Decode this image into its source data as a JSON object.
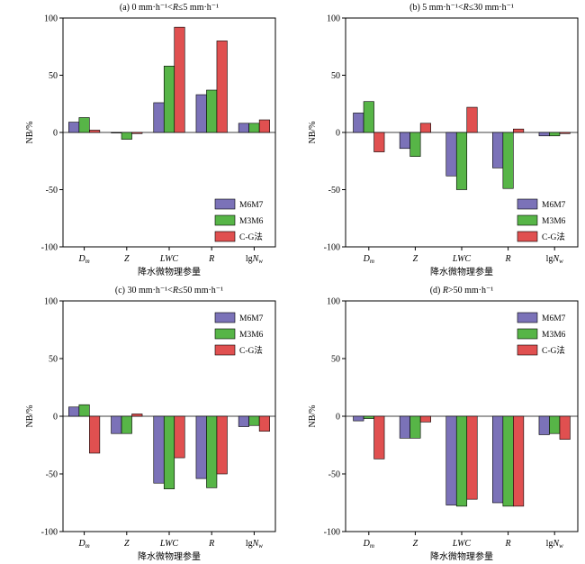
{
  "chart_data": [
    {
      "type": "bar",
      "title": "(a) 0 mm·h⁻¹<R≤5 mm·h⁻¹",
      "ylabel": "NB/%",
      "xlabel": "降水微物理参量",
      "ylim": [
        -100,
        100
      ],
      "yticks": [
        -100,
        -50,
        0,
        50,
        100
      ],
      "categories": [
        "Dm",
        "Z",
        "LWC",
        "R",
        "lgNw"
      ],
      "legend_position": "bottom-right",
      "series": [
        {
          "name": "M6M7",
          "color": "#7b72b8",
          "values": [
            9,
            0,
            26,
            33,
            8
          ]
        },
        {
          "name": "M3M6",
          "color": "#57b547",
          "values": [
            13,
            -6,
            58,
            37,
            8
          ]
        },
        {
          "name": "C-G法",
          "color": "#e05050",
          "values": [
            2,
            -1,
            92,
            80,
            11
          ]
        }
      ]
    },
    {
      "type": "bar",
      "title": "(b) 5 mm·h⁻¹<R≤30 mm·h⁻¹",
      "ylabel": "NB/%",
      "xlabel": "降水微物理参量",
      "ylim": [
        -100,
        100
      ],
      "yticks": [
        -100,
        -50,
        0,
        50,
        100
      ],
      "categories": [
        "Dm",
        "Z",
        "LWC",
        "R",
        "lgNw"
      ],
      "legend_position": "bottom-right",
      "series": [
        {
          "name": "M6M7",
          "color": "#7b72b8",
          "values": [
            17,
            -14,
            -38,
            -31,
            -3
          ]
        },
        {
          "name": "M3M6",
          "color": "#57b547",
          "values": [
            27,
            -21,
            -50,
            -49,
            -3
          ]
        },
        {
          "name": "C-G法",
          "color": "#e05050",
          "values": [
            -17,
            8,
            22,
            3,
            -1
          ]
        }
      ]
    },
    {
      "type": "bar",
      "title": "(c) 30 mm·h⁻¹<R≤50 mm·h⁻¹",
      "ylabel": "NB/%",
      "xlabel": "降水微物理参量",
      "ylim": [
        -100,
        100
      ],
      "yticks": [
        -100,
        -50,
        0,
        50,
        100
      ],
      "categories": [
        "Dm",
        "Z",
        "LWC",
        "R",
        "lgNw"
      ],
      "legend_position": "top-right",
      "series": [
        {
          "name": "M6M7",
          "color": "#7b72b8",
          "values": [
            8,
            -15,
            -58,
            -54,
            -9
          ]
        },
        {
          "name": "M3M6",
          "color": "#57b547",
          "values": [
            10,
            -15,
            -63,
            -62,
            -8
          ]
        },
        {
          "name": "C-G法",
          "color": "#e05050",
          "values": [
            -32,
            2,
            -36,
            -50,
            -13
          ]
        }
      ]
    },
    {
      "type": "bar",
      "title": "(d) R>50 mm·h⁻¹",
      "ylabel": "NB/%",
      "xlabel": "降水微物理参量",
      "ylim": [
        -100,
        100
      ],
      "yticks": [
        -100,
        -50,
        0,
        50,
        100
      ],
      "categories": [
        "Dm",
        "Z",
        "LWC",
        "R",
        "lgNw"
      ],
      "legend_position": "top-right",
      "series": [
        {
          "name": "M6M7",
          "color": "#7b72b8",
          "values": [
            -4,
            -19,
            -77,
            -75,
            -16
          ]
        },
        {
          "name": "M3M6",
          "color": "#57b547",
          "values": [
            -2,
            -19,
            -78,
            -78,
            -15
          ]
        },
        {
          "name": "C-G法",
          "color": "#e05050",
          "values": [
            -37,
            -5,
            -72,
            -78,
            -20
          ]
        }
      ]
    }
  ]
}
